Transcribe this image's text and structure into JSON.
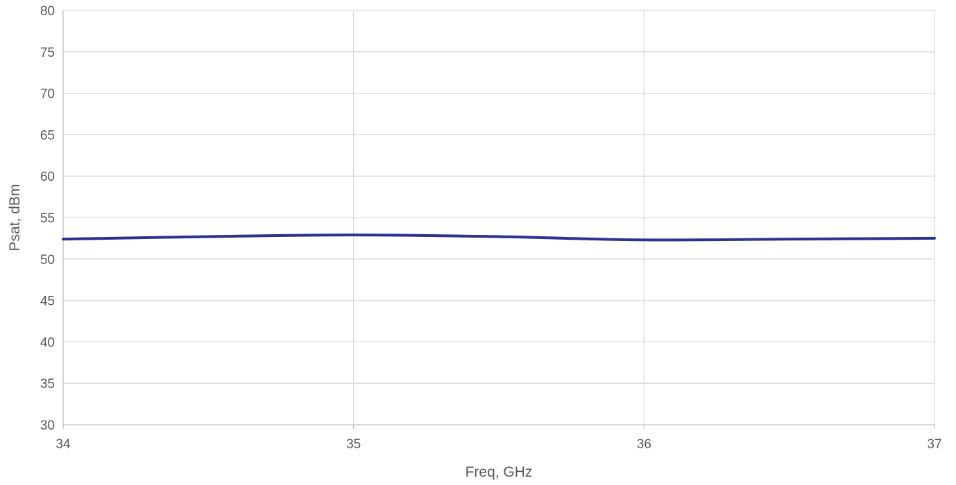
{
  "chart_data": {
    "type": "line",
    "title": "",
    "xlabel": "Freq, GHz",
    "ylabel": "Psat, dBm",
    "xlim": [
      34,
      37
    ],
    "ylim": [
      30,
      80
    ],
    "x_ticks": [
      34,
      35,
      36,
      37
    ],
    "y_ticks": [
      30,
      35,
      40,
      45,
      50,
      55,
      60,
      65,
      70,
      75,
      80
    ],
    "grid": true,
    "legend": "none",
    "series": [
      {
        "color": "#2e3192",
        "x": [
          34,
          34.5,
          35,
          35.5,
          36,
          36.5,
          37
        ],
        "y": [
          52.4,
          52.7,
          52.9,
          52.7,
          52.3,
          52.4,
          52.5
        ]
      }
    ]
  }
}
